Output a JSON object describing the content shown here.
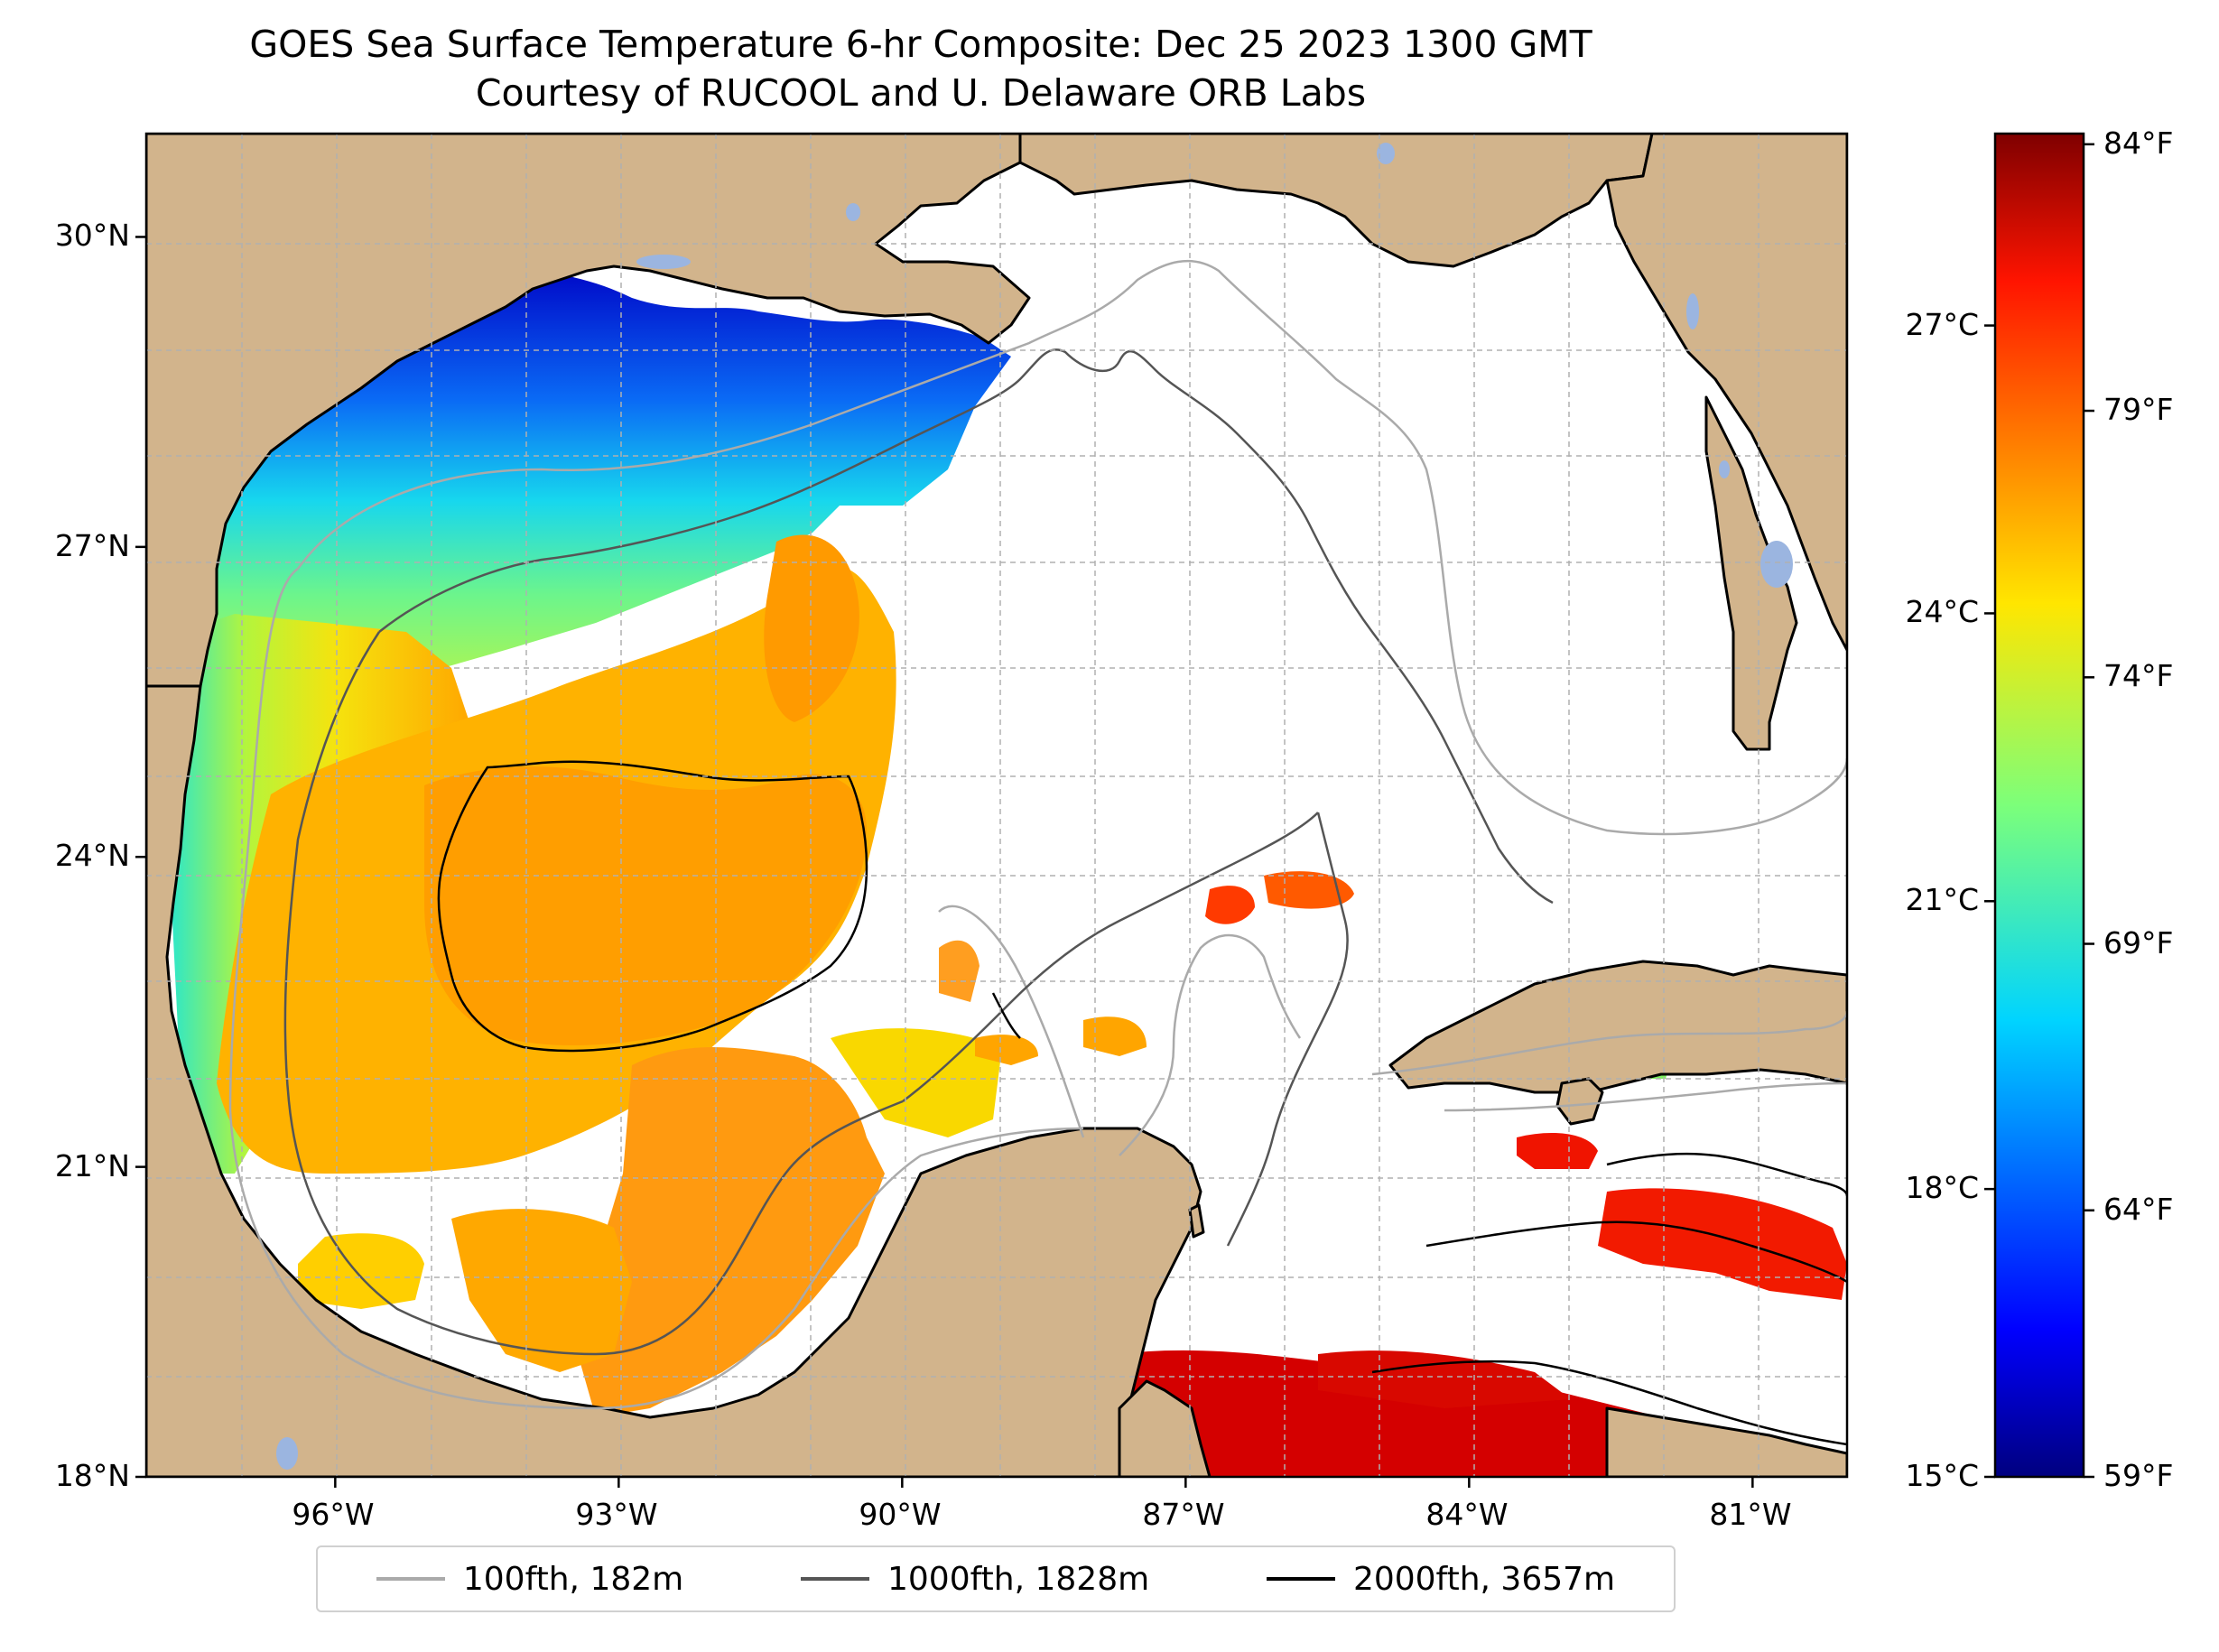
{
  "title": {
    "line1": "GOES Sea Surface Temperature 6-hr Composite: Dec 25 2023 1300 GMT",
    "line2": "Courtesy of RUCOOL and U. Delaware ORB Labs"
  },
  "map": {
    "lon_range": [
      -98.0,
      -80.0
    ],
    "lat_range": [
      18.0,
      31.0
    ],
    "lat_ticks": [
      {
        "value": 30,
        "label": "30°N"
      },
      {
        "value": 27,
        "label": "27°N"
      },
      {
        "value": 24,
        "label": "24°N"
      },
      {
        "value": 21,
        "label": "21°N"
      },
      {
        "value": 18,
        "label": "18°N"
      }
    ],
    "lon_ticks": [
      {
        "value": -96,
        "label": "96°W"
      },
      {
        "value": -93,
        "label": "93°W"
      },
      {
        "value": -90,
        "label": "90°W"
      },
      {
        "value": -87,
        "label": "87°W"
      },
      {
        "value": -84,
        "label": "84°W"
      },
      {
        "value": -81,
        "label": "81°W"
      }
    ],
    "gridlines": true,
    "colors": {
      "land": "#d2b48c",
      "ocean": "#ffffff",
      "lakes": "#9bb5e0",
      "coast": "#000000"
    }
  },
  "colorbar": {
    "colormap": "jet",
    "celsius_range": [
      15,
      29
    ],
    "celsius_ticks": [
      {
        "value": 15,
        "label": "15°C"
      },
      {
        "value": 18,
        "label": "18°C"
      },
      {
        "value": 21,
        "label": "21°C"
      },
      {
        "value": 24,
        "label": "24°C"
      },
      {
        "value": 27,
        "label": "27°C"
      }
    ],
    "fahrenheit_ticks": [
      {
        "value": 59,
        "label": "59°F"
      },
      {
        "value": 64,
        "label": "64°F"
      },
      {
        "value": 69,
        "label": "69°F"
      },
      {
        "value": 74,
        "label": "74°F"
      },
      {
        "value": 79,
        "label": "79°F"
      },
      {
        "value": 84,
        "label": "84°F"
      }
    ]
  },
  "legend": {
    "items": [
      {
        "label": "100fth, 182m",
        "color": "#aaaaaa"
      },
      {
        "label": "1000fth, 1828m",
        "color": "#555555"
      },
      {
        "label": "2000fth, 3657m",
        "color": "#000000"
      }
    ]
  }
}
